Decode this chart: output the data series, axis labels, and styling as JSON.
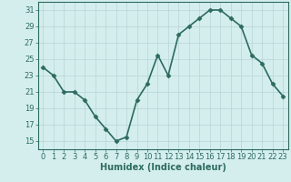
{
  "x": [
    0,
    1,
    2,
    3,
    4,
    5,
    6,
    7,
    8,
    9,
    10,
    11,
    12,
    13,
    14,
    15,
    16,
    17,
    18,
    19,
    20,
    21,
    22,
    23
  ],
  "y": [
    24,
    23,
    21,
    21,
    20,
    18,
    16.5,
    15,
    15.5,
    20,
    22,
    25.5,
    23,
    28,
    29,
    30,
    31,
    31,
    30,
    29,
    25.5,
    24.5,
    22,
    20.5
  ],
  "line_color": "#2d6b5e",
  "marker": "D",
  "marker_size": 2.5,
  "bg_color": "#d4eeee",
  "grid_color": "#b8d4d4",
  "xlabel": "Humidex (Indice chaleur)",
  "xlim": [
    -0.5,
    23.5
  ],
  "ylim": [
    14,
    32
  ],
  "yticks": [
    15,
    17,
    19,
    21,
    23,
    25,
    27,
    29,
    31
  ],
  "xticks": [
    0,
    1,
    2,
    3,
    4,
    5,
    6,
    7,
    8,
    9,
    10,
    11,
    12,
    13,
    14,
    15,
    16,
    17,
    18,
    19,
    20,
    21,
    22,
    23
  ],
  "xlabel_fontsize": 7,
  "tick_fontsize": 6,
  "line_width": 1.2
}
